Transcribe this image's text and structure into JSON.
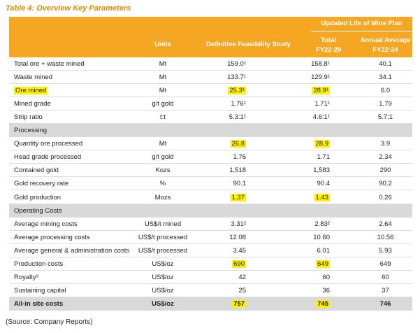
{
  "title": "Table 4: Overview Key Parameters",
  "header": {
    "units": "Units",
    "dfs": "Definitive Feasibility Study",
    "group": "Updated Life of Mine Plan",
    "total": [
      "Total",
      "FY22-29"
    ],
    "annual": [
      "Annual Average",
      "FY22-24"
    ]
  },
  "rows": [
    {
      "cells": [
        "Total ore + waste mined",
        "Mt",
        "159.0¹",
        "158.8¹",
        "40.1"
      ]
    },
    {
      "cells": [
        "Waste mined",
        "Mt",
        "133.7¹",
        "129.9¹",
        "34.1"
      ]
    },
    {
      "cells": [
        "Ore mined",
        "Mt",
        "25.3¹",
        "28.9¹",
        "6.0"
      ],
      "highlight": [
        0,
        2,
        3
      ]
    },
    {
      "cells": [
        "Mined grade",
        "g/t gold",
        "1.76¹",
        "1.71¹",
        "1.79"
      ]
    },
    {
      "cells": [
        "Strip ratio",
        "t:t",
        "5.3:1¹",
        "4.6:1¹",
        "5.7:1"
      ]
    },
    {
      "section": "Processing"
    },
    {
      "cells": [
        "Quantity ore processed",
        "Mt",
        "26.8",
        "28.9",
        "3.9"
      ],
      "highlight": [
        2,
        3
      ]
    },
    {
      "cells": [
        "Head grade processed",
        "g/t gold",
        "1.76",
        "1.71",
        "2.34"
      ]
    },
    {
      "cells": [
        "Contained gold",
        "Kozs",
        "1,518",
        "1,583",
        "290"
      ]
    },
    {
      "cells": [
        "Gold recovery rate",
        "%",
        "90.1",
        "90.4",
        "90.2"
      ]
    },
    {
      "cells": [
        "Gold production",
        "Mozs",
        "1.37",
        "1.43",
        "0.26"
      ],
      "highlight": [
        2,
        3
      ]
    },
    {
      "section": "Operating Costs"
    },
    {
      "cells": [
        "Average mining costs",
        "US$/t mined",
        "3.31²",
        "2.83²",
        "2.64"
      ]
    },
    {
      "cells": [
        "Average processing costs",
        "US$/t processed",
        "12.08",
        "10.60",
        "10.56"
      ]
    },
    {
      "cells": [
        "Average general & administration costs",
        "US$/t processed",
        "3.45",
        "6.01",
        "5.93"
      ]
    },
    {
      "cells": [
        "Production costs",
        "US$/oz",
        "690",
        "649",
        "649"
      ],
      "highlight": [
        2,
        3
      ]
    },
    {
      "cells": [
        "Royalty³",
        "US$/oz",
        "42",
        "60",
        "60"
      ]
    },
    {
      "cells": [
        "Sustaining capital",
        "US$/oz",
        "25",
        "36",
        "37"
      ]
    },
    {
      "cells": [
        "All-in site costs",
        "US$/oz",
        "757",
        "745",
        "746"
      ],
      "highlight": [
        2,
        3
      ],
      "total": true
    }
  ],
  "source": "(Source: Company Reports)"
}
